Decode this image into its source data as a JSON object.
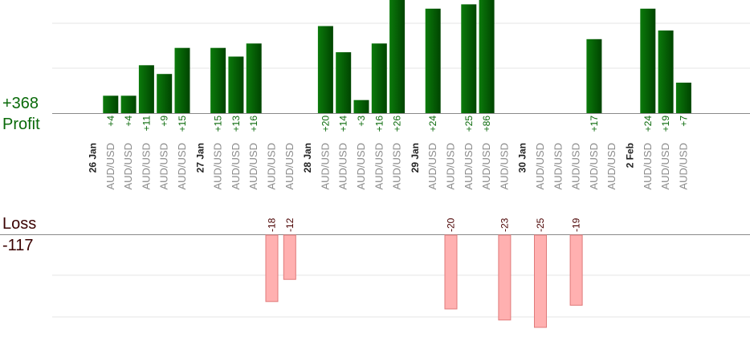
{
  "summary": {
    "profit_label": "Profit",
    "profit_total": "+368",
    "loss_label": "Loss",
    "loss_total": "-117"
  },
  "colors": {
    "profit_bar": "#0b6a0b",
    "profit_bar_dark": "#004400",
    "profit_text": "#0a6a0a",
    "loss_bar": "#ffb0b0",
    "loss_bar_stroke": "#e07a7a",
    "loss_text": "#4a0000",
    "pair_text": "#8a8a8a",
    "date_text": "#222222"
  },
  "chart_data": {
    "type": "bar",
    "title": "",
    "xlabel": "",
    "ylabel": "",
    "grid": true,
    "profit_ylim": [
      0,
      26
    ],
    "loss_ylim": [
      0,
      25
    ],
    "note_values": "profit bar heights are clipped at the top of the chart",
    "categories": [
      {
        "date": "26 Jan",
        "pair": "",
        "value": null
      },
      {
        "date": "",
        "pair": "AUD/USD",
        "value": 4,
        "label": "+4"
      },
      {
        "date": "",
        "pair": "AUD/USD",
        "value": 4,
        "label": "+4"
      },
      {
        "date": "",
        "pair": "AUD/USD",
        "value": 11,
        "label": "+11"
      },
      {
        "date": "",
        "pair": "AUD/USD",
        "value": 9,
        "label": "+9"
      },
      {
        "date": "",
        "pair": "AUD/USD",
        "value": 15,
        "label": "+15"
      },
      {
        "date": "27 Jan",
        "pair": "",
        "value": null
      },
      {
        "date": "",
        "pair": "AUD/USD",
        "value": 15,
        "label": "+15"
      },
      {
        "date": "",
        "pair": "AUD/USD",
        "value": 13,
        "label": "+13"
      },
      {
        "date": "",
        "pair": "AUD/USD",
        "value": 16,
        "label": "+16"
      },
      {
        "date": "",
        "pair": "AUD/USD",
        "value": -18,
        "label": "-18"
      },
      {
        "date": "",
        "pair": "AUD/USD",
        "value": -12,
        "label": "-12"
      },
      {
        "date": "28 Jan",
        "pair": "",
        "value": null
      },
      {
        "date": "",
        "pair": "AUD/USD",
        "value": 20,
        "label": "+20"
      },
      {
        "date": "",
        "pair": "AUD/USD",
        "value": 14,
        "label": "+14"
      },
      {
        "date": "",
        "pair": "AUD/USD",
        "value": 3,
        "label": "+3"
      },
      {
        "date": "",
        "pair": "AUD/USD",
        "value": 16,
        "label": "+16"
      },
      {
        "date": "",
        "pair": "AUD/USD",
        "value": 26,
        "label": "+26"
      },
      {
        "date": "29 Jan",
        "pair": "",
        "value": null
      },
      {
        "date": "",
        "pair": "AUD/USD",
        "value": 24,
        "label": "+24"
      },
      {
        "date": "",
        "pair": "AUD/USD",
        "value": -20,
        "label": "-20"
      },
      {
        "date": "",
        "pair": "AUD/USD",
        "value": 25,
        "label": "+25"
      },
      {
        "date": "",
        "pair": "AUD/USD",
        "value": 86,
        "label": "+86"
      },
      {
        "date": "",
        "pair": "AUD/USD",
        "value": -23,
        "label": "-23"
      },
      {
        "date": "30 Jan",
        "pair": "",
        "value": null
      },
      {
        "date": "",
        "pair": "AUD/USD",
        "value": -25,
        "label": "-25"
      },
      {
        "date": "",
        "pair": "AUD/USD",
        "value": null
      },
      {
        "date": "",
        "pair": "AUD/USD",
        "value": -19,
        "label": "-19"
      },
      {
        "date": "",
        "pair": "AUD/USD",
        "value": 17,
        "label": "+17"
      },
      {
        "date": "",
        "pair": "AUD/USD",
        "value": null
      },
      {
        "date": "2 Feb",
        "pair": "",
        "value": null
      },
      {
        "date": "",
        "pair": "AUD/USD",
        "value": 24,
        "label": "+24"
      },
      {
        "date": "",
        "pair": "AUD/USD",
        "value": 19,
        "label": "+19"
      },
      {
        "date": "",
        "pair": "AUD/USD",
        "value": 7,
        "label": "+7"
      }
    ]
  }
}
